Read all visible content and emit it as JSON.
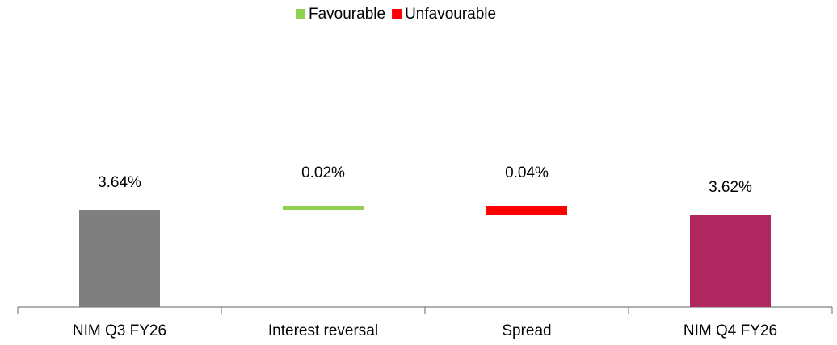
{
  "chart_data": {
    "type": "waterfall",
    "categories": [
      "NIM Q3 FY26",
      "Interest reversal",
      "Spread",
      "NIM Q4 FY26"
    ],
    "start": {
      "value": 3.64,
      "label": "3.64%",
      "color": "#7f7f7f"
    },
    "end": {
      "value": 3.62,
      "label": "3.62%",
      "color": "#ae275f"
    },
    "series": [
      {
        "name": "Favourable",
        "color": "#92d050",
        "direction": "up",
        "values": [
          null,
          0.02,
          null,
          null
        ],
        "value_labels": [
          null,
          "0.02%",
          null,
          null
        ]
      },
      {
        "name": "Unfavourable",
        "color": "#ff0000",
        "direction": "down",
        "values": [
          null,
          null,
          0.04,
          null
        ],
        "value_labels": [
          null,
          null,
          "0.04%",
          null
        ]
      }
    ],
    "ylim": [
      3.24,
      3.8
    ],
    "legend": "top"
  }
}
